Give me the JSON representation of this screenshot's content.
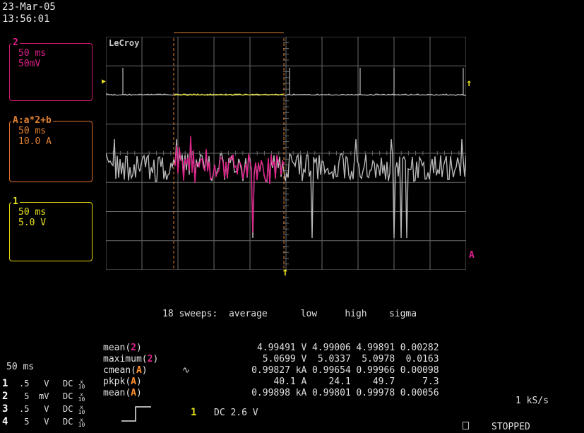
{
  "date": "23-Mar-05",
  "time": "13:56:01",
  "brand": "LeCroy",
  "traces": {
    "ch2": {
      "label": "2",
      "timebase": "50 ms",
      "scale": "50mV"
    },
    "mathA": {
      "label": "A",
      "formula": ":a*2+b",
      "timebase": "50 ms",
      "scale": "10.0 A"
    },
    "ch1": {
      "label": "1",
      "timebase": "50 ms",
      "scale": "5.0 V"
    }
  },
  "measurements": {
    "header": {
      "sweeps": "18 sweeps:",
      "cols": [
        "average",
        "low",
        "high",
        "sigma"
      ]
    },
    "rows": [
      {
        "name": "mean",
        "src": "2",
        "values": [
          "4.99491 V",
          "4.99006",
          "4.99891",
          "0.00282"
        ]
      },
      {
        "name": "maximum",
        "src": "2",
        "values": [
          "5.0699 V",
          "5.0337",
          "5.0978",
          "0.0163"
        ]
      },
      {
        "name": "cmean",
        "src": "A",
        "values": [
          "0.99827 kA",
          "0.99654",
          "0.99966",
          "0.00098"
        ]
      },
      {
        "name": "pkpk",
        "src": "A",
        "values": [
          "40.1 A",
          "24.1",
          "49.7",
          "7.3"
        ]
      },
      {
        "name": "mean",
        "src": "A",
        "values": [
          "0.99898 kA",
          "0.99801",
          "0.99978",
          "0.00056"
        ]
      }
    ]
  },
  "timebase": "50 ms",
  "channels": [
    {
      "n": "1",
      "volts": ".5",
      "unit": "V",
      "coupling": "DC"
    },
    {
      "n": "2",
      "volts": "5",
      "unit": "mV",
      "coupling": "DC"
    },
    {
      "n": "3",
      "volts": ".5",
      "unit": "V",
      "coupling": "DC"
    },
    {
      "n": "4",
      "volts": "5",
      "unit": "V",
      "coupling": "DC"
    }
  ],
  "trigger": {
    "source": "1",
    "text": "DC 2.6 V"
  },
  "sample_rate": "1 kS/s",
  "status": "STOPPED",
  "colors": {
    "ch1": "#e8e020",
    "ch2": "#e0208a",
    "mathA": "#e08030",
    "trace": "#b8b8b8",
    "grid": "#6a6a6a"
  }
}
